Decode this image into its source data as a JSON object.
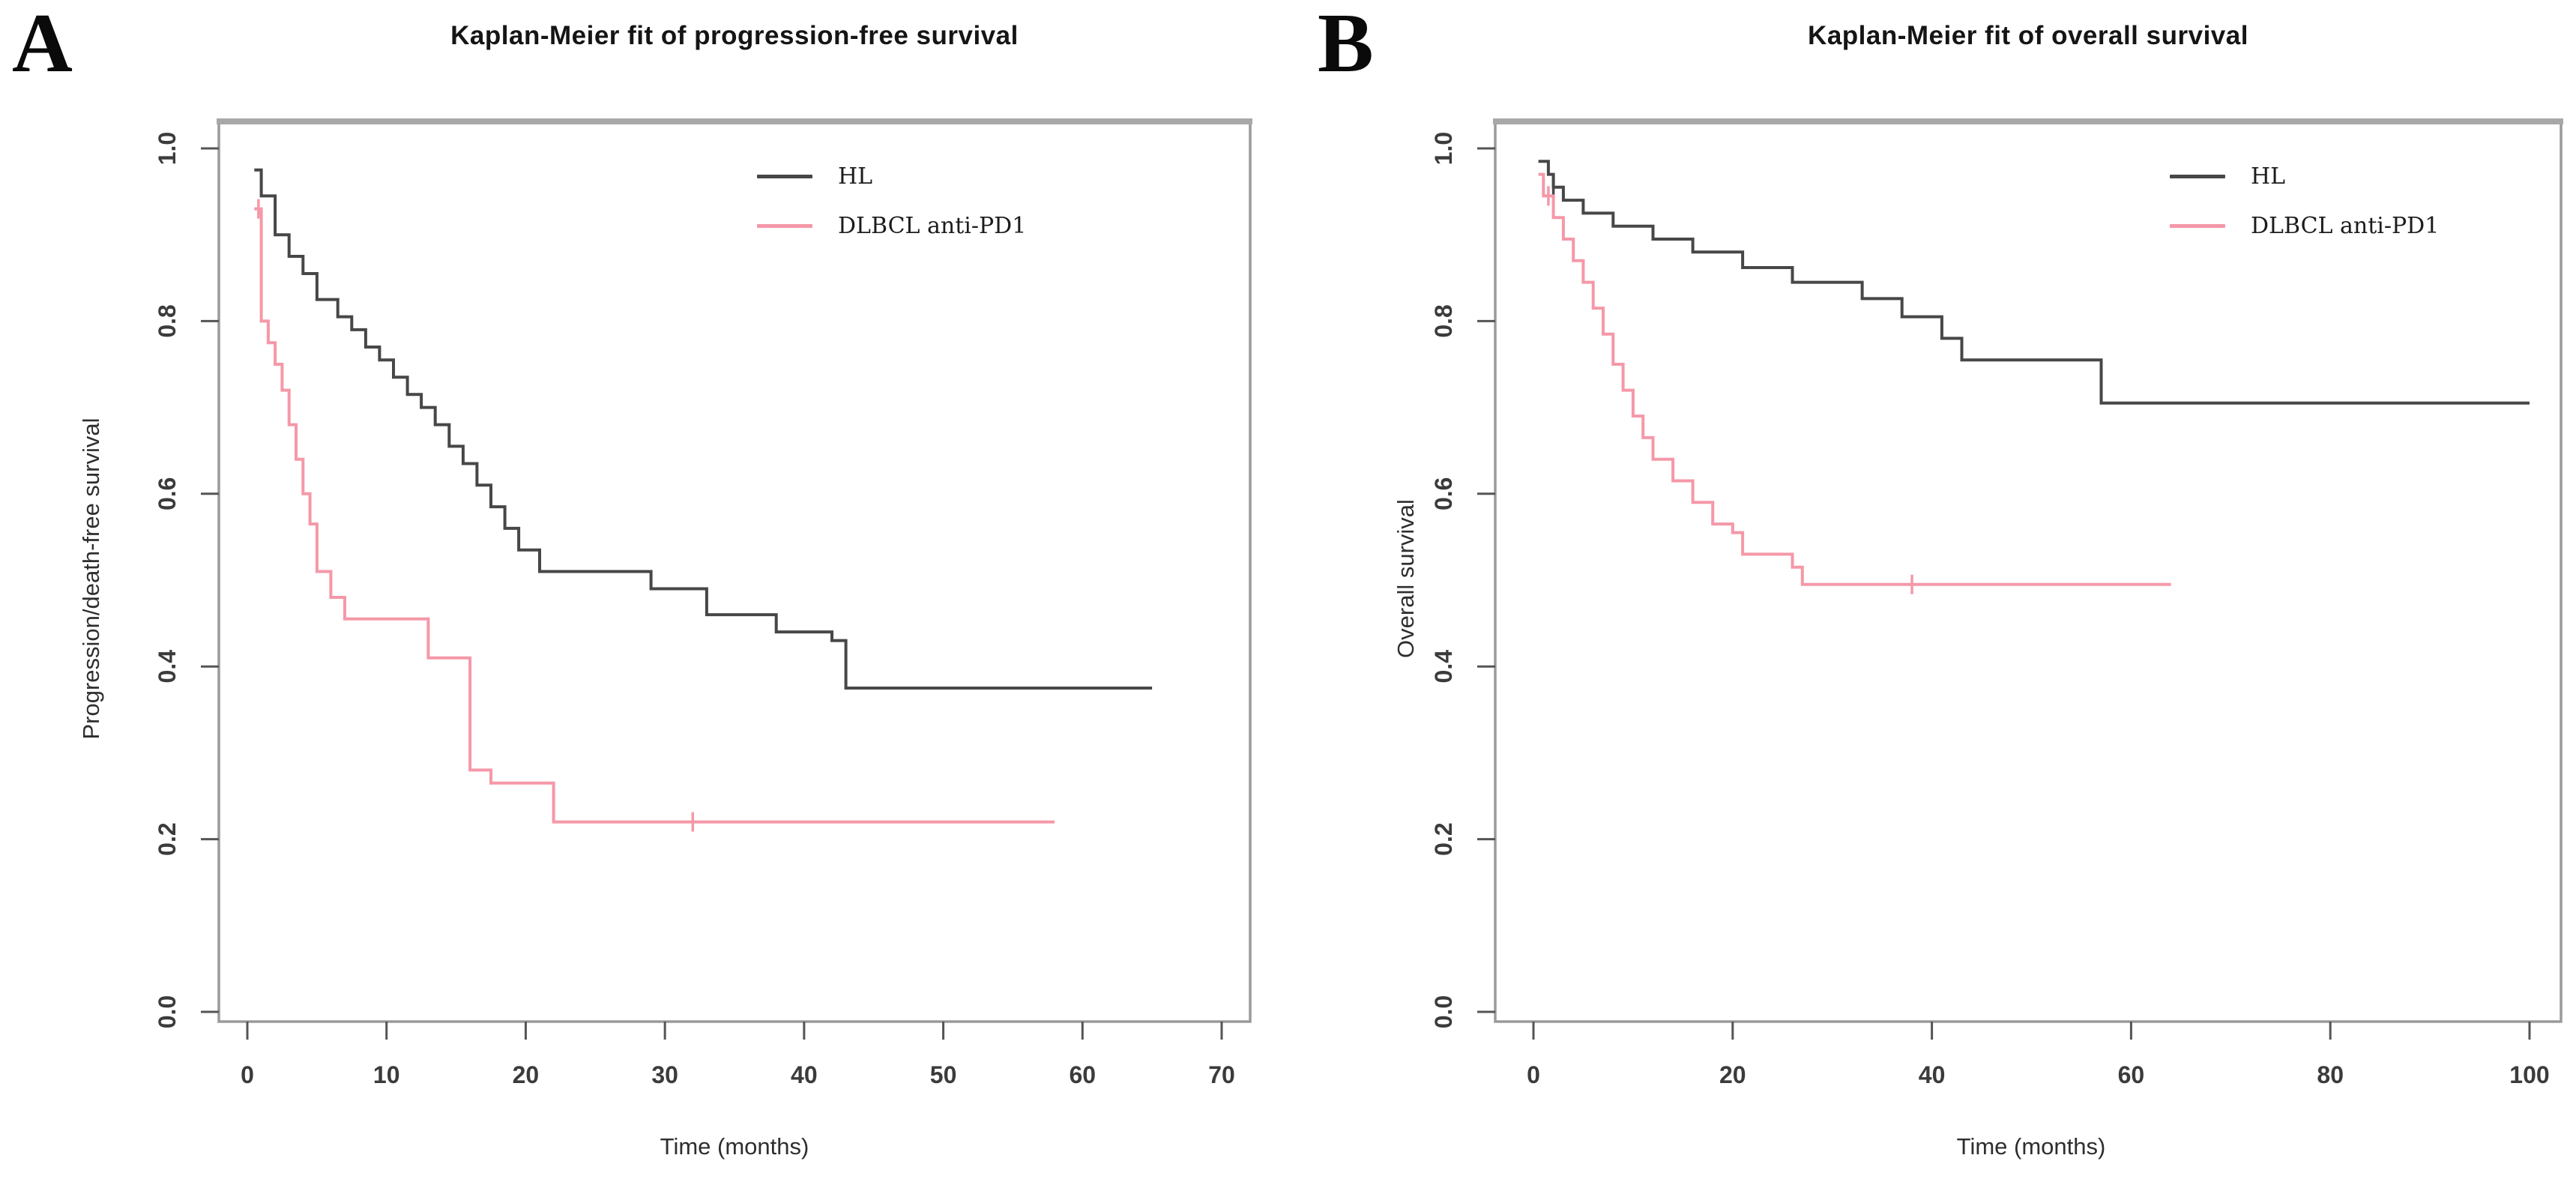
{
  "figure": {
    "background_color": "#ffffff",
    "axis_color": "#9a9a9a",
    "tick_text_color": "#3b3b3b",
    "panels": [
      {
        "label": "A"
      },
      {
        "label": "B"
      }
    ]
  },
  "chart_data": [
    {
      "type": "line",
      "subtype": "kaplan-meier-step",
      "title": "Kaplan-Meier fit of progression-free survival",
      "xlabel": "Time (months)",
      "ylabel": "Progression/death-free survival",
      "xlim": [
        0,
        70
      ],
      "ylim": [
        0.0,
        1.0
      ],
      "x_ticks": [
        0,
        10,
        20,
        30,
        40,
        50,
        60,
        70
      ],
      "y_ticks": [
        "0.0",
        "0.2",
        "0.4",
        "0.6",
        "0.8",
        "1.0"
      ],
      "grid": false,
      "legend_position": "top-right-inside",
      "series": [
        {
          "name": "HL",
          "color": "#474747",
          "end_time": 65,
          "censor_times": [],
          "points": [
            [
              0.5,
              0.975
            ],
            [
              1,
              0.945
            ],
            [
              2,
              0.9
            ],
            [
              3,
              0.875
            ],
            [
              4,
              0.855
            ],
            [
              5,
              0.825
            ],
            [
              6.5,
              0.805
            ],
            [
              7.5,
              0.79
            ],
            [
              8.5,
              0.77
            ],
            [
              9.5,
              0.755
            ],
            [
              10.5,
              0.735
            ],
            [
              11.5,
              0.715
            ],
            [
              12.5,
              0.7
            ],
            [
              13.5,
              0.68
            ],
            [
              14.5,
              0.655
            ],
            [
              15.5,
              0.635
            ],
            [
              16.5,
              0.61
            ],
            [
              17.5,
              0.585
            ],
            [
              18.5,
              0.56
            ],
            [
              19.5,
              0.535
            ],
            [
              21,
              0.51
            ],
            [
              29,
              0.49
            ],
            [
              33,
              0.46
            ],
            [
              38,
              0.44
            ],
            [
              42,
              0.43
            ],
            [
              43,
              0.375
            ]
          ]
        },
        {
          "name": "DLBCL anti-PD1",
          "color": "#f598a8",
          "end_time": 58,
          "censor_times": [
            0.8,
            32
          ],
          "points": [
            [
              0.5,
              0.93
            ],
            [
              1,
              0.8
            ],
            [
              1.5,
              0.775
            ],
            [
              2,
              0.75
            ],
            [
              2.5,
              0.72
            ],
            [
              3,
              0.68
            ],
            [
              3.5,
              0.64
            ],
            [
              4,
              0.6
            ],
            [
              4.5,
              0.565
            ],
            [
              5,
              0.51
            ],
            [
              6,
              0.48
            ],
            [
              7,
              0.455
            ],
            [
              13,
              0.41
            ],
            [
              16,
              0.28
            ],
            [
              17.5,
              0.265
            ],
            [
              22,
              0.22
            ]
          ]
        }
      ]
    },
    {
      "type": "line",
      "subtype": "kaplan-meier-step",
      "title": "Kaplan-Meier fit of overall survival",
      "xlabel": "Time (months)",
      "ylabel": "Overall survival",
      "xlim": [
        0,
        100
      ],
      "ylim": [
        0.0,
        1.0
      ],
      "x_ticks": [
        0,
        20,
        40,
        60,
        80,
        100
      ],
      "y_ticks": [
        "0.0",
        "0.2",
        "0.4",
        "0.6",
        "0.8",
        "1.0"
      ],
      "grid": false,
      "legend_position": "top-right-inside",
      "series": [
        {
          "name": "HL",
          "color": "#474747",
          "end_time": 100,
          "censor_times": [
            2
          ],
          "points": [
            [
              0.5,
              0.985
            ],
            [
              1.5,
              0.97
            ],
            [
              2,
              0.955
            ],
            [
              3,
              0.94
            ],
            [
              5,
              0.925
            ],
            [
              8,
              0.91
            ],
            [
              12,
              0.895
            ],
            [
              16,
              0.88
            ],
            [
              21,
              0.862
            ],
            [
              26,
              0.845
            ],
            [
              33,
              0.826
            ],
            [
              37,
              0.805
            ],
            [
              41,
              0.78
            ],
            [
              43,
              0.755
            ],
            [
              57,
              0.705
            ]
          ]
        },
        {
          "name": "DLBCL anti-PD1",
          "color": "#f598a8",
          "end_time": 64,
          "censor_times": [
            1.5,
            38
          ],
          "points": [
            [
              0.5,
              0.97
            ],
            [
              1,
              0.945
            ],
            [
              2,
              0.92
            ],
            [
              3,
              0.895
            ],
            [
              4,
              0.87
            ],
            [
              5,
              0.845
            ],
            [
              6,
              0.815
            ],
            [
              7,
              0.785
            ],
            [
              8,
              0.75
            ],
            [
              9,
              0.72
            ],
            [
              10,
              0.69
            ],
            [
              11,
              0.665
            ],
            [
              12,
              0.64
            ],
            [
              14,
              0.615
            ],
            [
              16,
              0.59
            ],
            [
              18,
              0.565
            ],
            [
              20,
              0.555
            ],
            [
              21,
              0.53
            ],
            [
              26,
              0.515
            ],
            [
              27,
              0.495
            ]
          ]
        }
      ]
    }
  ]
}
